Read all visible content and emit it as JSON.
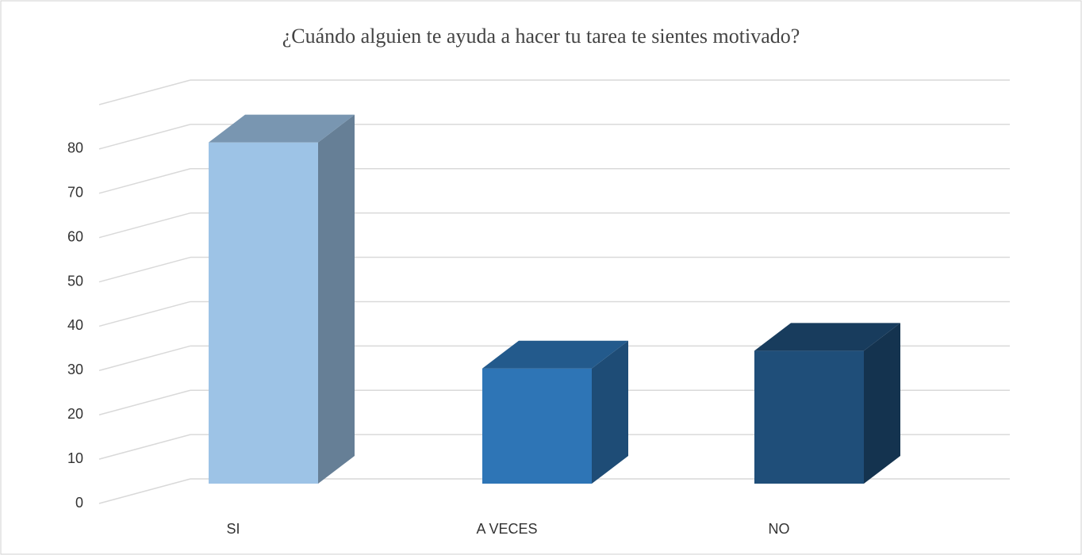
{
  "chart_data": {
    "type": "bar3d",
    "title": "¿Cuándo alguien te ayuda a hacer tu tarea te sientes motivado?",
    "categories": [
      "SI",
      "A VECES",
      "NO"
    ],
    "values": [
      77,
      26,
      30
    ],
    "colors": [
      "#9dc3e6",
      "#2e75b6",
      "#1f4e79"
    ],
    "ylim": [
      0,
      90
    ],
    "yticks": [
      0,
      10,
      20,
      30,
      40,
      50,
      60,
      70,
      80
    ],
    "grid": true
  }
}
